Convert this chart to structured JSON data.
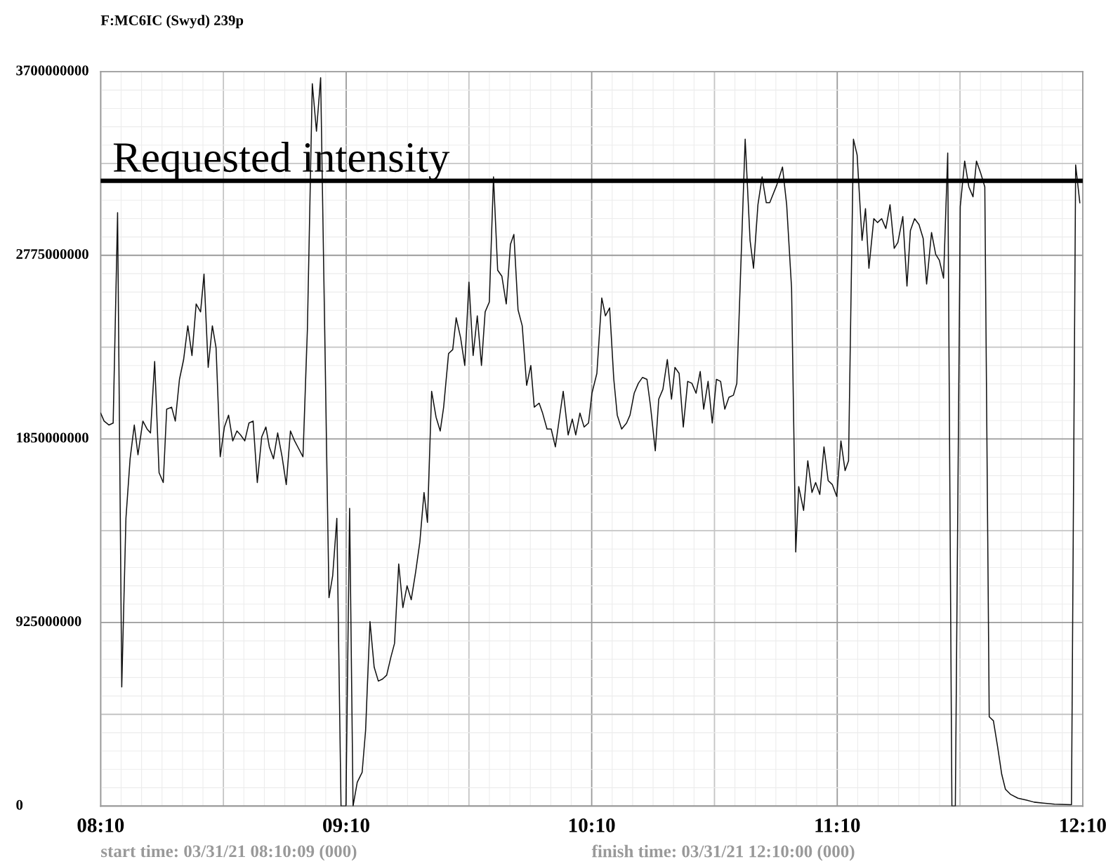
{
  "chart_data": {
    "type": "line",
    "title": "F:MC6IC (Swyd) 239p",
    "x": [
      8.167,
      8.181,
      8.201,
      8.218,
      8.236,
      8.253,
      8.27,
      8.287,
      8.304,
      8.319,
      8.339,
      8.356,
      8.37,
      8.387,
      8.405,
      8.422,
      8.436,
      8.456,
      8.471,
      8.488,
      8.505,
      8.522,
      8.539,
      8.556,
      8.574,
      8.588,
      8.605,
      8.622,
      8.637,
      8.654,
      8.671,
      8.688,
      8.705,
      8.722,
      8.737,
      8.754,
      8.771,
      8.788,
      8.805,
      8.823,
      8.84,
      8.854,
      8.871,
      8.888,
      8.906,
      8.923,
      8.94,
      8.957,
      8.974,
      8.991,
      9.009,
      9.029,
      9.046,
      9.063,
      9.097,
      9.112,
      9.129,
      9.146,
      9.166,
      9.181,
      9.195,
      9.212,
      9.232,
      9.246,
      9.264,
      9.281,
      9.298,
      9.315,
      9.332,
      9.349,
      9.364,
      9.381,
      9.398,
      9.415,
      9.432,
      9.45,
      9.467,
      9.484,
      9.498,
      9.515,
      9.533,
      9.55,
      9.564,
      9.584,
      9.601,
      9.615,
      9.633,
      9.65,
      9.667,
      9.684,
      9.701,
      9.718,
      9.733,
      9.75,
      9.767,
      9.784,
      9.801,
      9.819,
      9.836,
      9.85,
      9.867,
      9.884,
      9.902,
      9.919,
      9.933,
      9.953,
      9.967,
      9.985,
      10.002,
      10.019,
      10.036,
      10.051,
      10.071,
      10.088,
      10.102,
      10.119,
      10.136,
      10.154,
      10.168,
      10.188,
      10.208,
      10.223,
      10.24,
      10.257,
      10.271,
      10.289,
      10.309,
      10.323,
      10.34,
      10.357,
      10.374,
      10.392,
      10.406,
      10.426,
      10.44,
      10.457,
      10.475,
      10.492,
      10.506,
      10.523,
      10.54,
      10.558,
      10.575,
      10.592,
      10.609,
      10.623,
      10.641,
      10.658,
      10.675,
      10.692,
      10.709,
      10.726,
      10.744,
      10.758,
      10.792,
      10.812,
      10.826,
      10.844,
      10.861,
      10.878,
      10.892,
      10.921,
      10.944,
      10.961,
      10.981,
      10.998,
      11.01,
      11.03,
      11.047,
      11.064,
      11.079,
      11.096,
      11.113,
      11.13,
      11.147,
      11.165,
      11.182,
      11.199,
      11.213,
      11.233,
      11.248,
      11.268,
      11.282,
      11.296,
      11.316,
      11.331,
      11.348,
      11.365,
      11.382,
      11.399,
      11.414,
      11.434,
      11.451,
      11.465,
      11.482,
      11.5,
      11.517,
      11.531,
      11.551,
      11.568,
      11.583,
      11.6,
      11.617,
      11.634,
      11.648,
      11.668,
      11.686,
      11.703,
      11.72,
      11.734,
      11.751,
      11.768,
      11.786,
      11.803,
      11.82,
      11.837,
      11.852,
      11.872,
      11.903,
      11.938,
      11.969,
      12.006,
      12.052,
      12.121,
      12.138,
      12.155
    ],
    "series": [
      {
        "color": "#111111",
        "values": [
          1980000000,
          1940000000,
          1920000000,
          1930000000,
          2990000000,
          600000000,
          1450000000,
          1750000000,
          1920000000,
          1770000000,
          1940000000,
          1900000000,
          1880000000,
          2240000000,
          1680000000,
          1630000000,
          2000000000,
          2010000000,
          1940000000,
          2150000000,
          2250000000,
          2420000000,
          2270000000,
          2530000000,
          2490000000,
          2680000000,
          2210000000,
          2420000000,
          2310000000,
          1760000000,
          1910000000,
          1970000000,
          1840000000,
          1890000000,
          1870000000,
          1840000000,
          1930000000,
          1940000000,
          1630000000,
          1860000000,
          1910000000,
          1810000000,
          1750000000,
          1880000000,
          1760000000,
          1620000000,
          1890000000,
          1840000000,
          1800000000,
          1760000000,
          2400000000,
          3640000000,
          3400000000,
          3670000000,
          1050000000,
          1160000000,
          1450000000,
          0,
          0,
          1500000000,
          0,
          120000000,
          170000000,
          380000000,
          930000000,
          700000000,
          630000000,
          640000000,
          660000000,
          750000000,
          820000000,
          1220000000,
          1000000000,
          1110000000,
          1040000000,
          1180000000,
          1330000000,
          1580000000,
          1430000000,
          2090000000,
          1960000000,
          1890000000,
          2010000000,
          2280000000,
          2300000000,
          2460000000,
          2360000000,
          2220000000,
          2640000000,
          2270000000,
          2470000000,
          2220000000,
          2490000000,
          2540000000,
          3170000000,
          2700000000,
          2670000000,
          2530000000,
          2830000000,
          2880000000,
          2500000000,
          2420000000,
          2120000000,
          2220000000,
          2010000000,
          2030000000,
          1980000000,
          1900000000,
          1900000000,
          1810000000,
          1960000000,
          2090000000,
          1870000000,
          1950000000,
          1870000000,
          1980000000,
          1910000000,
          1930000000,
          2080000000,
          2180000000,
          2560000000,
          2470000000,
          2510000000,
          2150000000,
          1970000000,
          1900000000,
          1930000000,
          1970000000,
          2080000000,
          2130000000,
          2160000000,
          2150000000,
          2020000000,
          1790000000,
          2050000000,
          2100000000,
          2250000000,
          2050000000,
          2210000000,
          2180000000,
          1910000000,
          2140000000,
          2130000000,
          2080000000,
          2190000000,
          2000000000,
          2140000000,
          1930000000,
          2150000000,
          2140000000,
          2000000000,
          2060000000,
          2070000000,
          2130000000,
          3360000000,
          2850000000,
          2710000000,
          3030000000,
          3170000000,
          3040000000,
          3040000000,
          3130000000,
          3220000000,
          3030000000,
          2610000000,
          1280000000,
          1610000000,
          1490000000,
          1740000000,
          1580000000,
          1630000000,
          1570000000,
          1810000000,
          1640000000,
          1620000000,
          1560000000,
          1840000000,
          1690000000,
          1740000000,
          3360000000,
          3280000000,
          2850000000,
          3010000000,
          2710000000,
          2960000000,
          2940000000,
          2960000000,
          2910000000,
          3030000000,
          2810000000,
          2840000000,
          2970000000,
          2620000000,
          2900000000,
          2960000000,
          2930000000,
          2860000000,
          2630000000,
          2890000000,
          2780000000,
          2750000000,
          2660000000,
          3290000000,
          0,
          0,
          3020000000,
          3250000000,
          3120000000,
          3070000000,
          3250000000,
          3190000000,
          3120000000,
          450000000,
          430000000,
          300000000,
          160000000,
          85000000,
          60000000,
          40000000,
          30000000,
          20000000,
          15000000,
          10000000,
          7000000,
          3230000000,
          3040000000
        ]
      }
    ],
    "xlim": [
      8.167,
      12.167
    ],
    "xticks": [
      {
        "value": 8.167,
        "label": "08:10"
      },
      {
        "value": 8.667,
        "label": null
      },
      {
        "value": 9.167,
        "label": "09:10"
      },
      {
        "value": 9.667,
        "label": null
      },
      {
        "value": 10.167,
        "label": "10:10"
      },
      {
        "value": 10.667,
        "label": null
      },
      {
        "value": 11.167,
        "label": "11:10"
      },
      {
        "value": 11.667,
        "label": null
      },
      {
        "value": 12.167,
        "label": "12:10"
      }
    ],
    "ylim": [
      0,
      3700000000
    ],
    "yticks": [
      0,
      {
        "value": 462500000,
        "label": null
      },
      925000000,
      {
        "value": 1387500000,
        "label": null
      },
      1850000000,
      {
        "value": 2312500000,
        "label": null
      },
      2775000000,
      {
        "value": 3237500000,
        "label": null
      },
      3700000000
    ],
    "grid": true,
    "ref_lines": [
      {
        "axis": "y",
        "value": 3150000000,
        "label": "Requested intensity",
        "color": "#000000",
        "line_style": "solid"
      }
    ],
    "annotations": [
      "start time: 03/31/21 08:10:09 (000)",
      "finish time: 03/31/21 12:10:00 (000)"
    ]
  }
}
